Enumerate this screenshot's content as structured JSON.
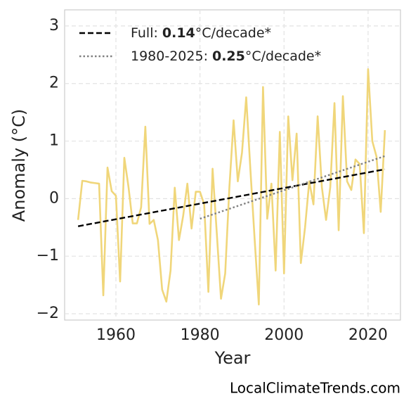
{
  "chart_data": {
    "type": "line",
    "xlabel": "Year",
    "ylabel": "Anomaly (°C)",
    "source": "LocalClimateTrends.com",
    "x": [
      1951,
      1952,
      1953,
      1954,
      1955,
      1956,
      1957,
      1958,
      1959,
      1960,
      1961,
      1962,
      1963,
      1964,
      1965,
      1966,
      1967,
      1968,
      1969,
      1970,
      1971,
      1972,
      1973,
      1974,
      1975,
      1976,
      1977,
      1978,
      1979,
      1980,
      1981,
      1982,
      1983,
      1984,
      1985,
      1986,
      1987,
      1988,
      1989,
      1990,
      1991,
      1992,
      1993,
      1994,
      1995,
      1996,
      1997,
      1998,
      1999,
      2000,
      2001,
      2002,
      2003,
      2004,
      2005,
      2006,
      2007,
      2008,
      2009,
      2010,
      2011,
      2012,
      2013,
      2014,
      2015,
      2016,
      2017,
      2018,
      2019,
      2020,
      2021,
      2022,
      2023,
      2024
    ],
    "values": [
      -0.37,
      0.31,
      0.3,
      0.28,
      0.27,
      0.26,
      -1.68,
      0.54,
      0.13,
      0.05,
      -1.44,
      0.71,
      0.2,
      -0.43,
      -0.43,
      -0.15,
      1.25,
      -0.44,
      -0.37,
      -0.72,
      -1.58,
      -1.79,
      -1.25,
      0.19,
      -0.72,
      -0.3,
      0.26,
      -0.52,
      0.12,
      0.12,
      -0.1,
      -1.62,
      0.52,
      -0.6,
      -1.74,
      -1.3,
      0.2,
      1.36,
      0.3,
      0.8,
      1.76,
      0.5,
      -0.7,
      -1.84,
      1.94,
      -0.35,
      0.26,
      -1.25,
      1.16,
      -1.3,
      1.43,
      0.32,
      1.13,
      -1.12,
      -0.5,
      0.3,
      -0.1,
      1.43,
      0.2,
      -0.37,
      0.2,
      1.66,
      -0.55,
      1.78,
      0.3,
      0.15,
      0.68,
      0.6,
      -0.6,
      2.25,
      1.0,
      0.73,
      -0.23,
      1.19
    ],
    "color": "#f0d67a",
    "trend_lines": [
      {
        "name": "Full:",
        "slope": 0.14,
        "unit": "°C/decade*",
        "x": [
          1951,
          2024
        ],
        "values": [
          -0.48,
          0.51
        ],
        "color": "#000000",
        "style": "dashed"
      },
      {
        "name": "1980-2025:",
        "slope": 0.25,
        "unit": "°C/decade*",
        "x": [
          1980,
          2024
        ],
        "values": [
          -0.35,
          0.74
        ],
        "color": "#808080",
        "style": "dotted"
      }
    ],
    "xlim": [
      1947.8,
      2027.7
    ],
    "ylim": [
      -2.11,
      3.28
    ],
    "xticks": [
      1960,
      1980,
      2000,
      2020
    ],
    "yticks": [
      {
        "value": -2,
        "label": "−2"
      },
      {
        "value": -1,
        "label": "−1"
      },
      0,
      1,
      2,
      3
    ],
    "grid": true,
    "legend": "upper left"
  }
}
